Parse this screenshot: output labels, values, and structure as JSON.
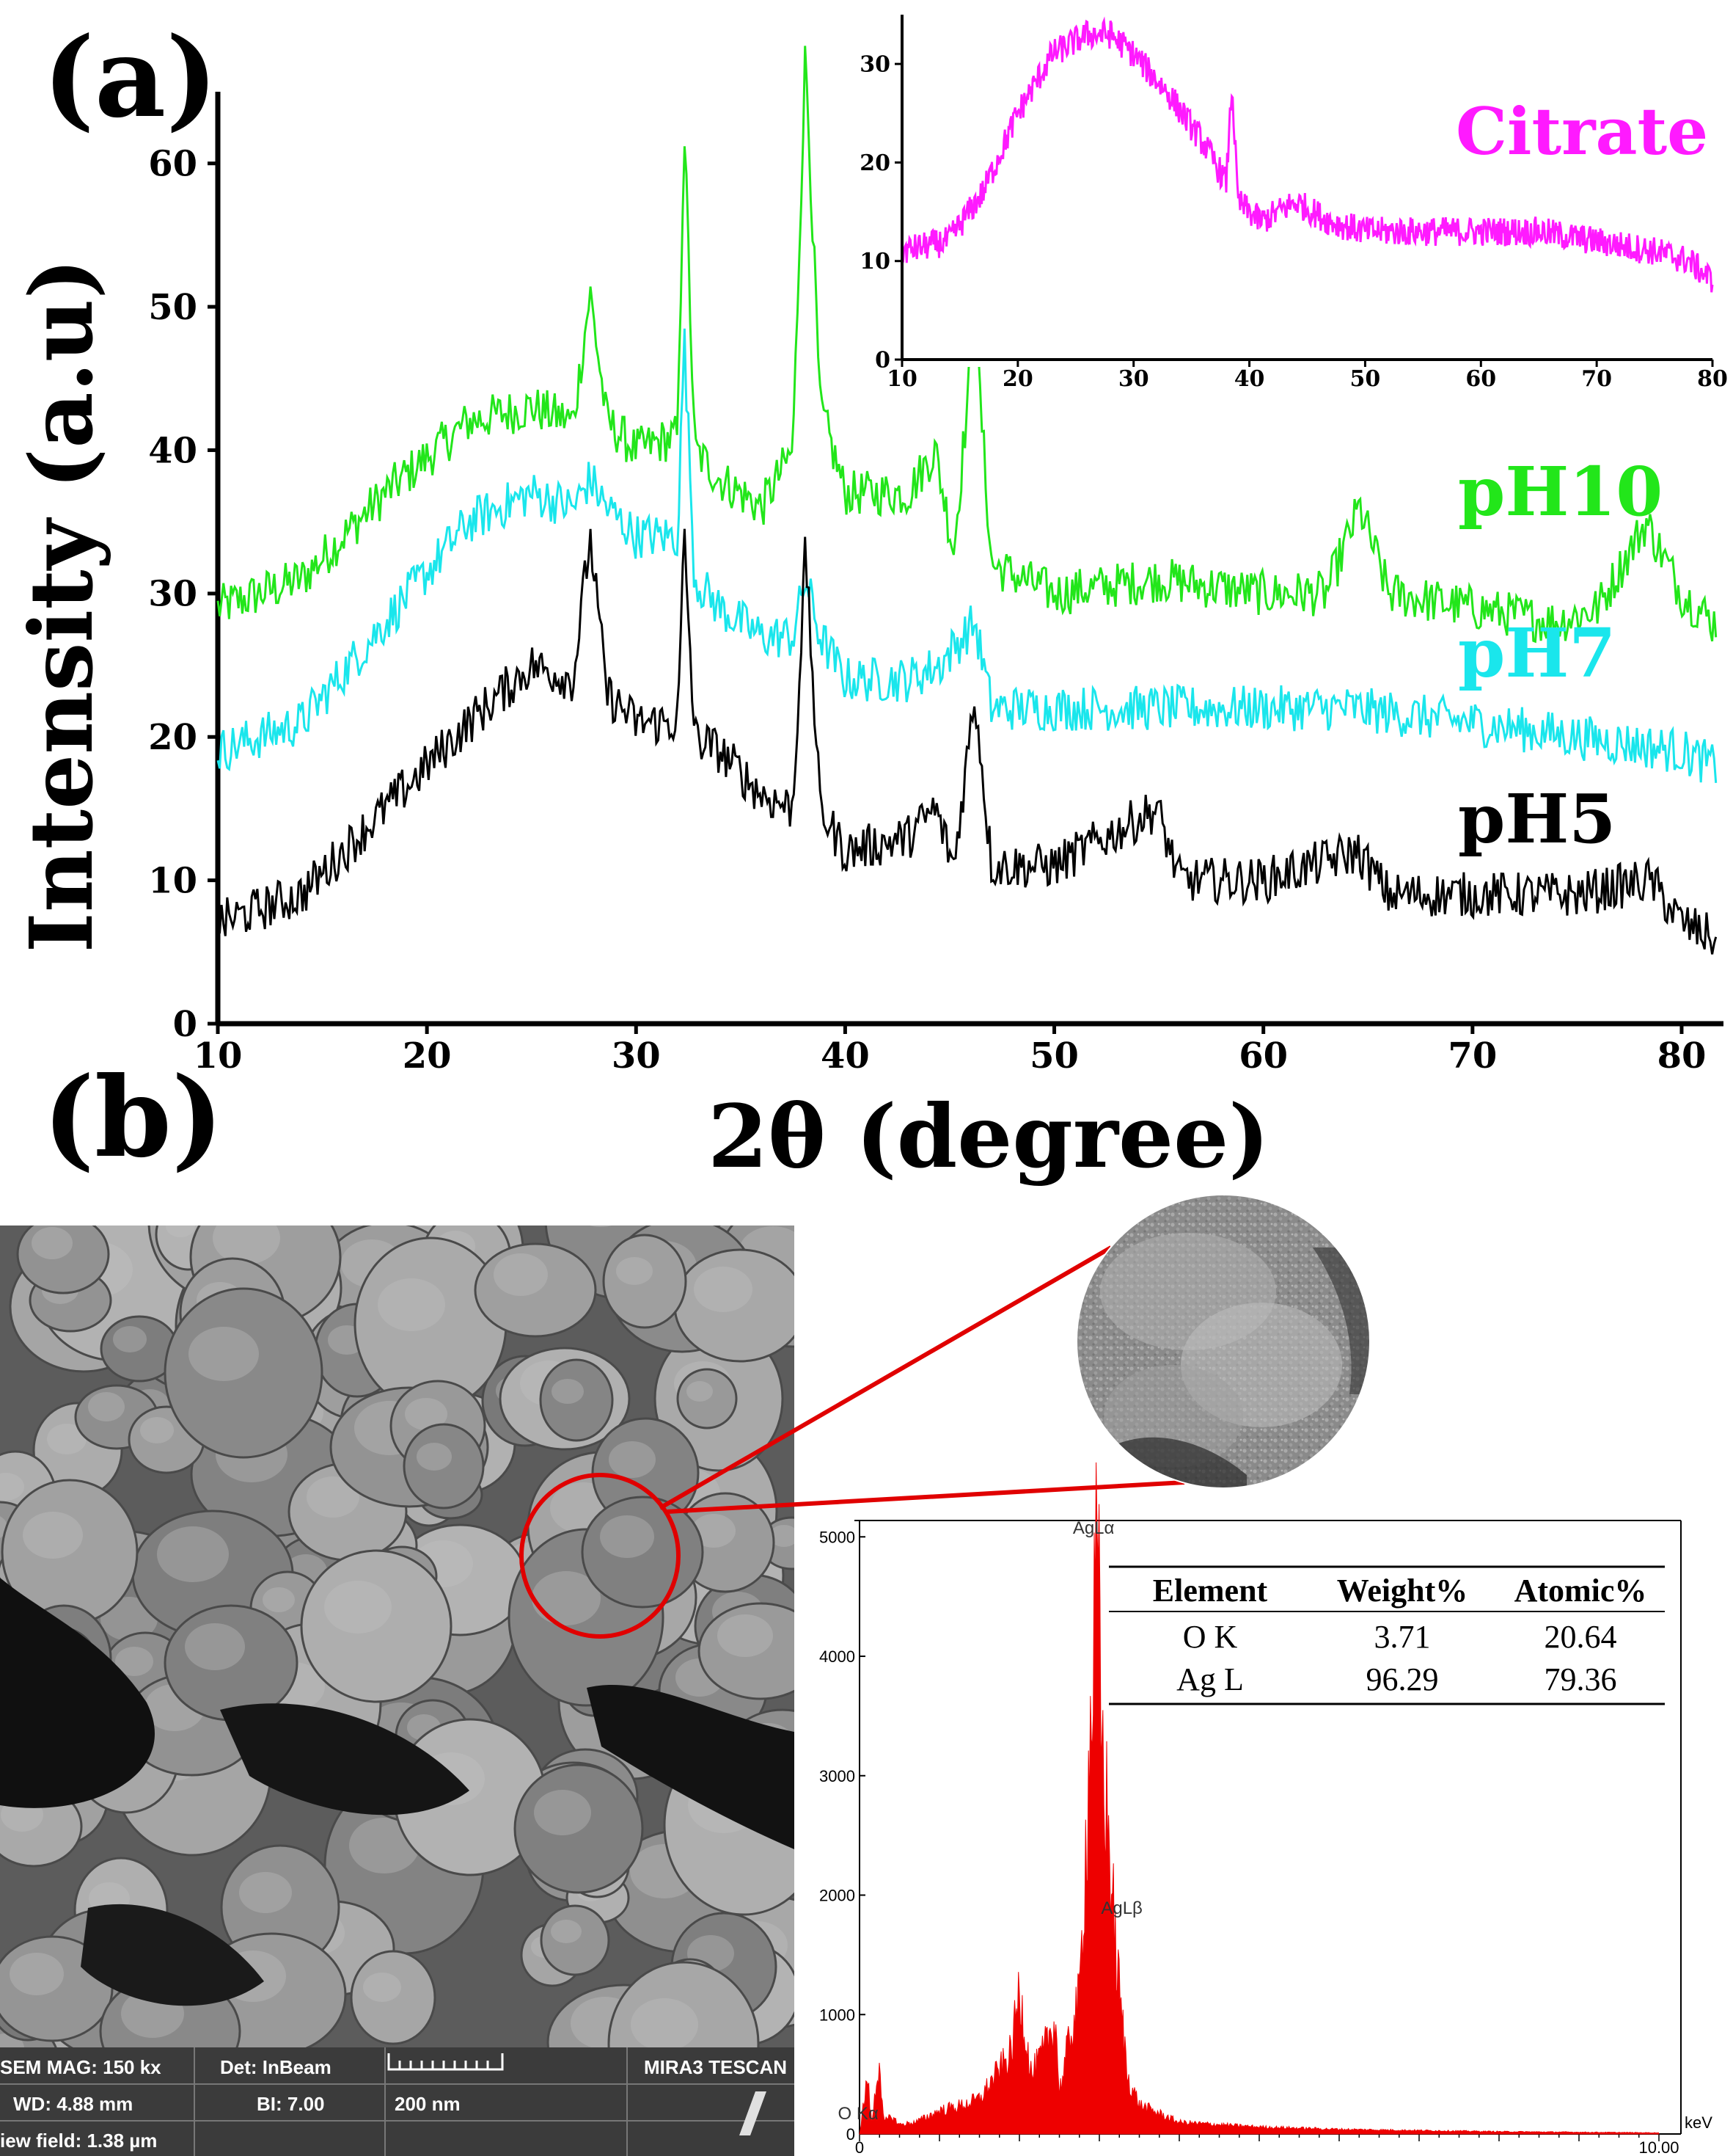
{
  "panel_a_label": "(a)",
  "panel_b_label": "(b)",
  "chart_data": [
    {
      "id": "xrd-main",
      "type": "line",
      "title": "",
      "xlabel": "2θ (degree)",
      "ylabel": "Intensity (a.u)",
      "xlim": [
        10,
        82
      ],
      "ylim": [
        0,
        65
      ],
      "xticks": [
        10,
        20,
        30,
        40,
        50,
        60,
        70,
        80
      ],
      "yticks": [
        0,
        10,
        20,
        30,
        40,
        50,
        60
      ],
      "series": [
        {
          "name": "pH10",
          "color": "#22e61a",
          "x": [
            10,
            14,
            18,
            22,
            25,
            27,
            27.8,
            28.6,
            30,
            32,
            32.3,
            32.8,
            34,
            36,
            37.5,
            38.1,
            38.8,
            40,
            43,
            44.3,
            45.2,
            46.2,
            47,
            50,
            55,
            60,
            63,
            64.6,
            66,
            70,
            74,
            76,
            78.3,
            80,
            81.5
          ],
          "y": [
            29,
            31,
            37,
            42,
            43,
            42,
            51,
            42,
            40,
            41,
            63,
            40,
            38,
            36,
            40,
            68,
            43,
            37,
            37,
            40,
            33,
            49,
            32,
            30,
            31,
            30,
            30,
            36,
            30,
            29,
            28,
            29,
            35,
            30,
            28
          ]
        },
        {
          "name": "pH7",
          "color": "#1ae6ec",
          "x": [
            10,
            14,
            18,
            22,
            25,
            27,
            27.8,
            28.6,
            30,
            32,
            32.3,
            32.8,
            34,
            36,
            37.5,
            38.1,
            38.8,
            40,
            43,
            44.5,
            46.2,
            47,
            50,
            55,
            60,
            64,
            70,
            75,
            80,
            81.5
          ],
          "y": [
            19,
            21,
            28,
            35,
            37,
            36,
            38,
            36,
            34,
            34,
            48,
            31,
            29,
            27,
            27,
            31,
            27,
            24,
            24,
            25,
            28,
            22,
            22,
            22,
            22,
            22,
            21,
            20,
            19,
            18
          ],
          "unlabeled_points": true
        },
        {
          "name": "pH5",
          "color": "#000000",
          "x": [
            10,
            14,
            18,
            22,
            25,
            27,
            27.8,
            28.6,
            30,
            32,
            32.3,
            32.8,
            34,
            36,
            37.5,
            38.1,
            38.8,
            40,
            43,
            44.3,
            45.2,
            46.2,
            47,
            50,
            54.9,
            56,
            60,
            64.5,
            66,
            70,
            75,
            78.5,
            80,
            81.5
          ],
          "y": [
            7,
            9,
            15,
            21,
            25,
            24,
            34,
            23,
            21,
            21,
            34,
            20,
            19,
            16,
            15,
            33,
            15,
            12,
            13,
            15,
            11,
            23,
            11,
            11,
            15,
            10,
            10,
            12,
            9,
            9,
            9,
            10,
            7,
            6
          ]
        }
      ],
      "series_labels": [
        "pH10",
        "pH7",
        "pH5"
      ]
    },
    {
      "id": "xrd-inset",
      "type": "line",
      "xlim": [
        10,
        80
      ],
      "ylim": [
        0,
        35
      ],
      "xticks": [
        10,
        20,
        30,
        40,
        50,
        60,
        70,
        80
      ],
      "yticks": [
        0,
        10,
        20,
        30
      ],
      "series": [
        {
          "name": "Citrate",
          "color": "#ff1aff",
          "x": [
            10,
            14,
            17,
            20,
            23,
            26,
            28,
            30,
            33,
            36,
            38,
            38.5,
            39,
            41,
            44,
            47,
            50,
            55,
            60,
            65,
            70,
            75,
            78,
            80
          ],
          "y": [
            11,
            12,
            17,
            25,
            31,
            33,
            33,
            31,
            27,
            22,
            18,
            28,
            16,
            14,
            16,
            14,
            13,
            13,
            13,
            13,
            12,
            11,
            10,
            8
          ]
        }
      ]
    },
    {
      "id": "edx",
      "type": "bar",
      "xlabel": "keV",
      "xlim": [
        0,
        10
      ],
      "ylim": [
        0,
        5100
      ],
      "xticks": [
        0,
        10
      ],
      "xtick_labels": [
        "0",
        "10.00"
      ],
      "yticks": [
        0,
        1000,
        2000,
        3000,
        4000,
        5000
      ],
      "series": [
        {
          "name": "EDX spectrum",
          "color": "#ee0000",
          "x": [
            0.0,
            0.1,
            0.15,
            0.25,
            0.3,
            0.4,
            0.5,
            0.7,
            1.0,
            1.3,
            1.5,
            1.9,
            2.0,
            2.15,
            2.3,
            2.45,
            2.5,
            2.65,
            2.75,
            2.98,
            3.02,
            3.15,
            3.2,
            3.35,
            3.5,
            4.0,
            5.0,
            6.0,
            7.0,
            8.0,
            9.0,
            10.0
          ],
          "y": [
            0,
            500,
            80,
            650,
            100,
            150,
            80,
            100,
            200,
            250,
            300,
            700,
            1250,
            500,
            700,
            1000,
            350,
            900,
            1150,
            5000,
            3500,
            2200,
            1600,
            500,
            250,
            100,
            60,
            40,
            30,
            20,
            15,
            10
          ]
        }
      ],
      "peak_labels": [
        {
          "text": "AgLα",
          "x": 2.98
        },
        {
          "text": "AgLβ",
          "x": 3.15
        },
        {
          "text": "O Kα",
          "x": 0.5
        }
      ],
      "table": {
        "headers": [
          "Element",
          "Weight%",
          "Atomic%"
        ],
        "rows": [
          [
            "O K",
            "3.71",
            "20.64"
          ],
          [
            "Ag L",
            "96.29",
            "79.36"
          ]
        ]
      }
    }
  ],
  "sem": {
    "mag": "SEM MAG: 150 kx",
    "wd": "WD: 4.88 mm",
    "view_field": "iew field: 1.38 µm",
    "det": "Det: InBeam",
    "bi": "BI: 7.00",
    "scale": "200 nm",
    "instrument": "MIRA3 TESCAN"
  }
}
